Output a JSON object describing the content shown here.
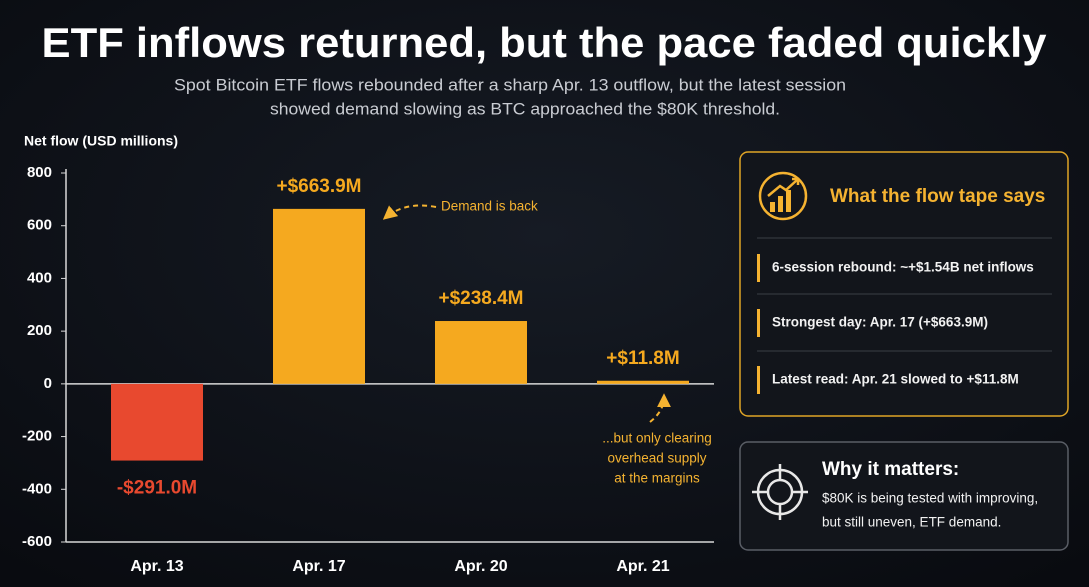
{
  "chart_data": {
    "type": "bar",
    "title": "ETF inflows returned, but the pace faded quickly",
    "subtitle": [
      "Spot Bitcoin ETF flows rebounded after a sharp Apr. 13 outflow, but the latest session",
      "showed demand slowing as BTC approached the $80K threshold."
    ],
    "y_label": "Net flow (USD millions)",
    "categories": [
      "Apr. 13",
      "Apr. 17",
      "Apr. 20",
      "Apr. 21"
    ],
    "values": [
      -291.0,
      663.9,
      238.4,
      11.8
    ],
    "value_labels": [
      "-$291.0M",
      "+$663.9M",
      "+$238.4M",
      "+$11.8M"
    ],
    "colors": [
      "#e8492f",
      "#f5a91f",
      "#f5a91f",
      "#f5a91f"
    ],
    "ylim": [
      -600,
      800
    ],
    "yticks": [
      -600,
      -400,
      -200,
      0,
      200,
      400,
      600,
      800
    ],
    "grid": false,
    "annotations": [
      [
        "Demand is back"
      ],
      [
        "...but only clearing",
        "overhead supply",
        "at the margins"
      ]
    ]
  },
  "panels": [
    {
      "heading": "What the flow tape says",
      "items": [
        "6-session rebound: ~+$1.54B net inflows",
        "Strongest day: Apr. 17 (+$663.9M)",
        "Latest read: Apr. 21 slowed to +$11.8M"
      ]
    },
    {
      "heading": "Why it matters:",
      "lines": [
        "$80K is being tested with improving,",
        "but still uneven, ETF demand."
      ]
    }
  ]
}
